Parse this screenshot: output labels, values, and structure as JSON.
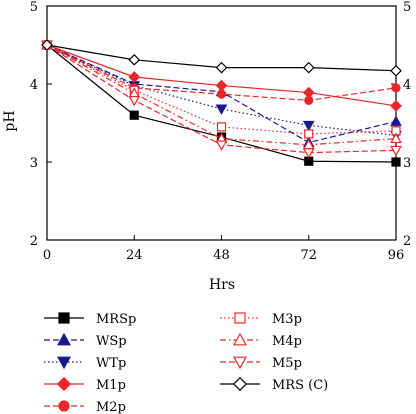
{
  "chart_data": {
    "type": "line",
    "xlabel": "Hrs",
    "ylabel": "pH",
    "x": [
      0,
      24,
      48,
      72,
      96
    ],
    "xlim": [
      0,
      96
    ],
    "ylim": [
      2,
      5
    ],
    "xticks": [
      "0",
      "24",
      "48",
      "72",
      "96"
    ],
    "yticks": [
      "2",
      "3",
      "4",
      "5"
    ],
    "yticks_right": [
      "2",
      "3",
      "4",
      "5"
    ],
    "grid": false,
    "legend_position": "bottom",
    "series": [
      {
        "name": "MRSp",
        "values": [
          4.5,
          3.6,
          3.32,
          3.01,
          3.0
        ],
        "color": "#000000",
        "line": "solid",
        "marker": "square",
        "filled": true
      },
      {
        "name": "WSp",
        "values": [
          4.5,
          4.0,
          3.9,
          3.25,
          3.52
        ],
        "color": "#1a1a8c",
        "line": "dashed",
        "marker": "triangle-up",
        "filled": true
      },
      {
        "name": "WTp",
        "values": [
          4.5,
          3.98,
          3.68,
          3.47,
          3.34
        ],
        "color": "#1a1a8c",
        "line": "dotted",
        "marker": "triangle-down",
        "filled": true
      },
      {
        "name": "M1p",
        "values": [
          4.5,
          4.09,
          3.98,
          3.89,
          3.72
        ],
        "color": "#e8262a",
        "line": "solid",
        "marker": "diamond",
        "filled": true
      },
      {
        "name": "M2p",
        "values": [
          4.5,
          3.95,
          3.87,
          3.79,
          3.95
        ],
        "color": "#e8262a",
        "line": "dashed",
        "marker": "circle",
        "filled": true
      },
      {
        "name": "M3p",
        "values": [
          4.5,
          3.92,
          3.45,
          3.36,
          3.4
        ],
        "color": "#e8262a",
        "line": "dotted",
        "marker": "square",
        "filled": false
      },
      {
        "name": "M4p",
        "values": [
          4.5,
          3.88,
          3.3,
          3.22,
          3.3
        ],
        "color": "#e8262a",
        "line": "dashdot",
        "marker": "triangle-up",
        "filled": false
      },
      {
        "name": "M5p",
        "values": [
          4.5,
          3.79,
          3.22,
          3.12,
          3.15
        ],
        "color": "#e8262a",
        "line": "dashed",
        "marker": "triangle-down",
        "filled": false
      },
      {
        "name": "MRS (C)",
        "values": [
          4.5,
          4.31,
          4.21,
          4.21,
          4.17
        ],
        "color": "#000000",
        "line": "solid",
        "marker": "diamond",
        "filled": false
      }
    ],
    "legend_left_column": [
      "MRSp",
      "WSp",
      "WTp",
      "M1p",
      "M2p"
    ],
    "legend_right_column": [
      "M3p",
      "M4p",
      "M5p",
      "MRS (C)"
    ]
  }
}
